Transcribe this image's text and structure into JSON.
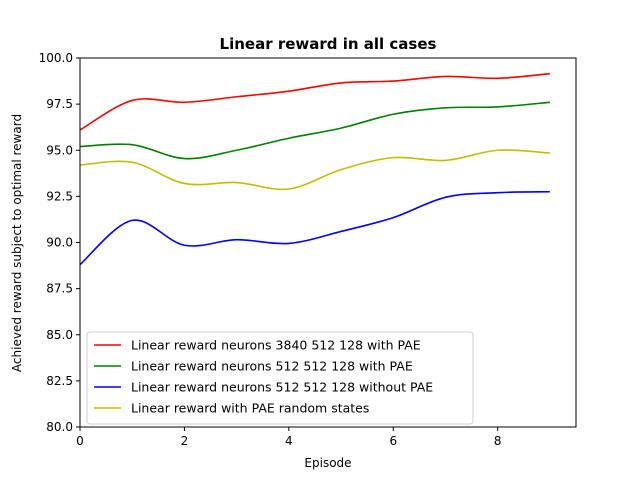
{
  "chart_data": {
    "type": "line",
    "title": "Linear reward in all cases",
    "title_color": "#bf00bf",
    "xlabel": "Episode",
    "ylabel": "Achieved reward subject to optimal reward",
    "xlim": [
      0,
      9.5
    ],
    "ylim": [
      80,
      100
    ],
    "xticks": [
      0,
      2,
      4,
      6,
      8
    ],
    "xtick_labels": [
      "0",
      "2",
      "4",
      "6",
      "8"
    ],
    "yticks": [
      80,
      82.5,
      85,
      87.5,
      90,
      92.5,
      95,
      97.5,
      100
    ],
    "ytick_labels": [
      "80.0",
      "82.5",
      "85.0",
      "87.5",
      "90.0",
      "92.5",
      "95.0",
      "97.5",
      "100.0"
    ],
    "grid": false,
    "legend_position": "lower-left",
    "x": [
      0,
      1,
      2,
      3,
      4,
      5,
      6,
      7,
      8,
      9
    ],
    "series": [
      {
        "name": "Linear reward neurons 3840 512 128 with PAE",
        "color": "#ff0000",
        "values": [
          96.1,
          97.7,
          97.6,
          97.9,
          98.2,
          98.65,
          98.75,
          99.0,
          98.9,
          99.15
        ]
      },
      {
        "name": "Linear reward neurons 512 512 128 with PAE",
        "color": "#008000",
        "values": [
          95.2,
          95.3,
          94.55,
          95.0,
          95.65,
          96.2,
          96.95,
          97.3,
          97.35,
          97.6
        ]
      },
      {
        "name": "Linear reward neurons 512 512 128 without PAE",
        "color": "#0000ff",
        "values": [
          88.8,
          91.2,
          89.85,
          90.15,
          89.95,
          90.6,
          91.35,
          92.45,
          92.7,
          92.75
        ]
      },
      {
        "name": "Linear reward with PAE random states",
        "color": "#bfbf00",
        "values": [
          94.2,
          94.35,
          93.2,
          93.25,
          92.9,
          93.95,
          94.6,
          94.45,
          95.0,
          94.85
        ]
      }
    ]
  }
}
